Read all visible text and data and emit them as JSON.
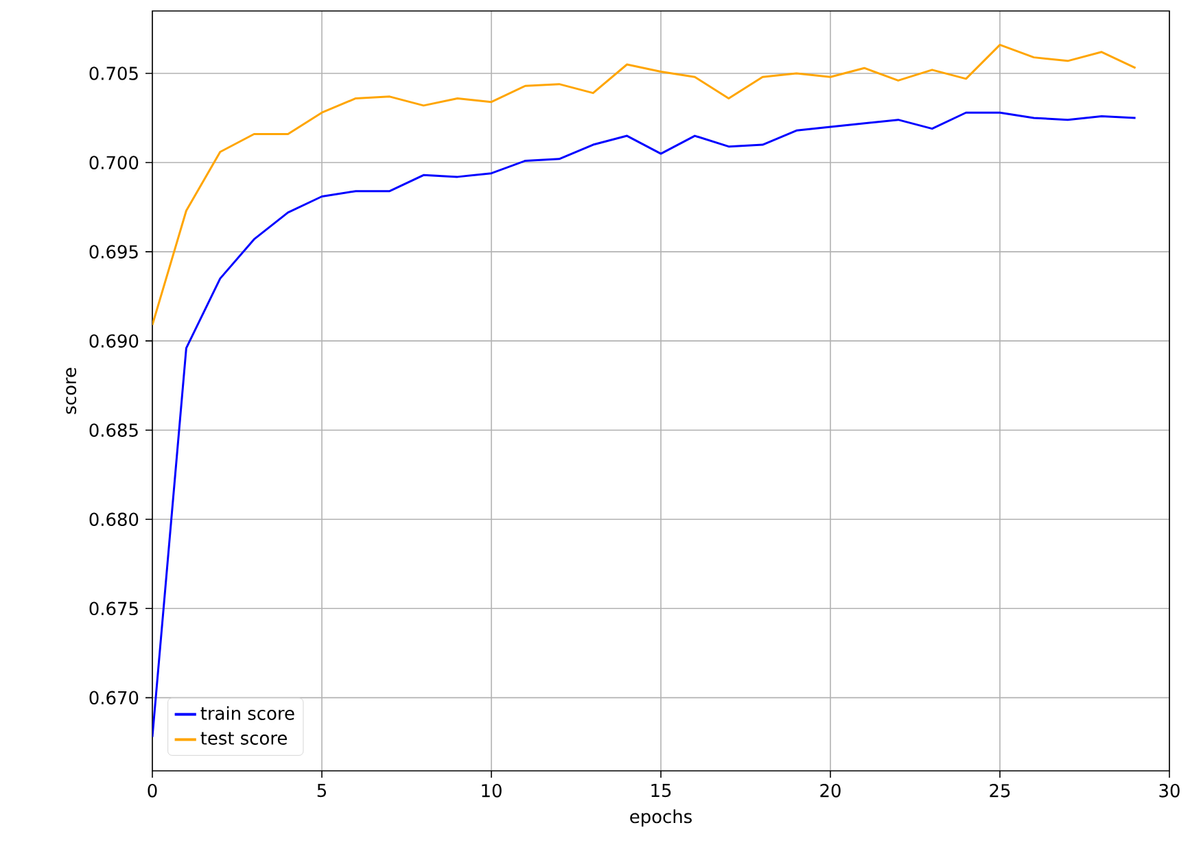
{
  "chart_data": {
    "type": "line",
    "xlabel": "epochs",
    "ylabel": "score",
    "x": [
      0,
      1,
      2,
      3,
      4,
      5,
      6,
      7,
      8,
      9,
      10,
      11,
      12,
      13,
      14,
      15,
      16,
      17,
      18,
      19,
      20,
      21,
      22,
      23,
      24,
      25,
      26,
      27,
      28,
      29
    ],
    "series": [
      {
        "name": "train score",
        "color": "#0000ff",
        "values": [
          0.6678,
          0.6896,
          0.6935,
          0.6957,
          0.6972,
          0.6981,
          0.6984,
          0.6984,
          0.6993,
          0.6992,
          0.6994,
          0.7001,
          0.7002,
          0.701,
          0.7015,
          0.7005,
          0.7015,
          0.7009,
          0.701,
          0.7018,
          0.702,
          0.7022,
          0.7024,
          0.7019,
          0.7028,
          0.7028,
          0.7025,
          0.7024,
          0.7026,
          0.7025
        ]
      },
      {
        "name": "test score",
        "color": "#ffa500",
        "values": [
          0.6909,
          0.6973,
          0.7006,
          0.7016,
          0.7016,
          0.7028,
          0.7036,
          0.7037,
          0.7032,
          0.7036,
          0.7034,
          0.7043,
          0.7044,
          0.7039,
          0.7055,
          0.7051,
          0.7048,
          0.7036,
          0.7048,
          0.705,
          0.7048,
          0.7053,
          0.7046,
          0.7052,
          0.7047,
          0.7066,
          0.7059,
          0.7057,
          0.7062,
          0.7053
        ]
      }
    ],
    "xlim": [
      0,
      30
    ],
    "ylim": [
      0.6659,
      0.7085
    ],
    "xticks": [
      0,
      5,
      10,
      15,
      20,
      25,
      30
    ],
    "yticks": [
      {
        "value": 0.67,
        "label": "0.670"
      },
      {
        "value": 0.675,
        "label": "0.675"
      },
      {
        "value": 0.68,
        "label": "0.680"
      },
      {
        "value": 0.685,
        "label": "0.685"
      },
      {
        "value": 0.69,
        "label": "0.690"
      },
      {
        "value": 0.695,
        "label": "0.695"
      },
      {
        "value": 0.7,
        "label": "0.700"
      },
      {
        "value": 0.705,
        "label": "0.705"
      }
    ],
    "grid": true,
    "legend": "bottom left",
    "line_style": "solid",
    "marker": "none"
  }
}
